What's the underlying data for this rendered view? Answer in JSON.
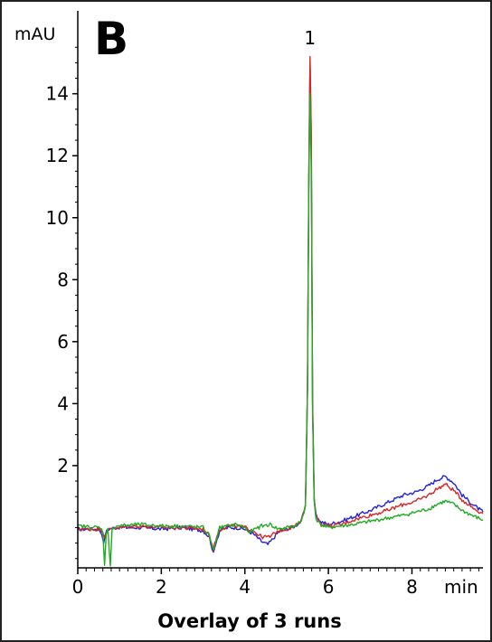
{
  "panel_label": "B",
  "caption": "Overlay of 3 runs",
  "chart_data": {
    "type": "line",
    "title": "",
    "xlabel": "min",
    "ylabel": "mAU",
    "xlim": [
      0,
      9.7
    ],
    "ylim": [
      -1.3,
      16.5
    ],
    "x_ticks": [
      0,
      2,
      4,
      6,
      8
    ],
    "x_tick_labels": [
      "0",
      "2",
      "4",
      "6",
      "8"
    ],
    "y_ticks": [
      2,
      4,
      6,
      8,
      10,
      12,
      14
    ],
    "y_tick_labels": [
      "2",
      "4",
      "6",
      "8",
      "10",
      "12",
      "14"
    ],
    "grid": false,
    "legend": "none",
    "annotations": [
      {
        "text": "1",
        "x": 5.56,
        "y": 15.6
      }
    ],
    "series": [
      {
        "color": "#2222dd",
        "x": [
          0,
          0.5,
          0.58,
          0.62,
          0.66,
          0.72,
          0.9,
          1.5,
          2.0,
          2.5,
          3.0,
          3.15,
          3.25,
          3.3,
          3.4,
          3.6,
          3.8,
          4.0,
          4.2,
          4.4,
          4.55,
          4.65,
          4.8,
          5.0,
          5.2,
          5.35,
          5.45,
          5.5,
          5.53,
          5.56,
          5.59,
          5.62,
          5.66,
          5.7,
          5.8,
          6.0,
          6.3,
          6.6,
          7.0,
          7.4,
          7.8,
          8.1,
          8.4,
          8.6,
          8.8,
          9.0,
          9.2,
          9.5,
          9.7
        ],
        "y": [
          -0.05,
          -0.05,
          -0.2,
          -0.55,
          -0.2,
          -0.05,
          0.0,
          0.0,
          -0.05,
          0.0,
          -0.1,
          -0.3,
          -0.85,
          -0.5,
          -0.1,
          0.0,
          0.0,
          -0.05,
          -0.2,
          -0.45,
          -0.55,
          -0.4,
          -0.15,
          -0.05,
          0.05,
          0.2,
          0.7,
          4.5,
          11.0,
          15.0,
          12.5,
          4.0,
          0.9,
          0.4,
          0.2,
          0.1,
          0.2,
          0.35,
          0.55,
          0.8,
          1.05,
          1.15,
          1.35,
          1.55,
          1.65,
          1.45,
          1.05,
          0.7,
          0.5
        ]
      },
      {
        "color": "#dd2222",
        "x": [
          0,
          0.5,
          0.6,
          0.64,
          0.7,
          0.9,
          1.5,
          2.0,
          2.5,
          3.0,
          3.15,
          3.25,
          3.3,
          3.4,
          3.6,
          3.8,
          4.0,
          4.2,
          4.4,
          4.6,
          4.8,
          5.0,
          5.2,
          5.35,
          5.45,
          5.5,
          5.53,
          5.56,
          5.59,
          5.62,
          5.66,
          5.7,
          5.8,
          6.0,
          6.3,
          6.6,
          7.0,
          7.4,
          7.8,
          8.1,
          8.4,
          8.6,
          8.8,
          9.0,
          9.2,
          9.5,
          9.7
        ],
        "y": [
          -0.05,
          -0.05,
          -0.1,
          -0.3,
          -0.1,
          0.0,
          0.05,
          0.0,
          0.0,
          -0.05,
          -0.25,
          -0.7,
          -0.4,
          -0.05,
          0.05,
          0.05,
          0.0,
          -0.1,
          -0.3,
          -0.3,
          -0.1,
          -0.05,
          0.05,
          0.2,
          0.75,
          4.6,
          11.2,
          15.2,
          12.7,
          4.1,
          0.95,
          0.4,
          0.15,
          0.05,
          0.1,
          0.25,
          0.4,
          0.55,
          0.75,
          0.85,
          1.05,
          1.25,
          1.4,
          1.2,
          0.9,
          0.6,
          0.45
        ]
      },
      {
        "color": "#22aa22",
        "x": [
          0,
          0.5,
          0.6,
          0.64,
          0.68,
          0.72,
          0.78,
          0.82,
          0.9,
          1.5,
          2.0,
          2.5,
          3.0,
          3.15,
          3.25,
          3.3,
          3.4,
          3.6,
          3.8,
          4.0,
          4.1,
          4.25,
          4.4,
          4.6,
          4.8,
          5.0,
          5.2,
          5.35,
          5.45,
          5.5,
          5.53,
          5.56,
          5.59,
          5.62,
          5.66,
          5.7,
          5.8,
          6.0,
          6.3,
          6.6,
          7.0,
          7.4,
          7.8,
          8.1,
          8.4,
          8.6,
          8.8,
          9.0,
          9.2,
          9.5,
          9.7
        ],
        "y": [
          0.05,
          0.0,
          -0.1,
          -1.25,
          -0.2,
          0.0,
          -1.25,
          -0.1,
          0.05,
          0.1,
          0.05,
          0.05,
          0.0,
          -0.25,
          -0.75,
          -0.45,
          0.0,
          0.05,
          0.1,
          0.0,
          -0.15,
          -0.05,
          0.05,
          0.1,
          -0.05,
          0.0,
          0.05,
          0.2,
          0.7,
          4.4,
          10.9,
          14.0,
          11.5,
          3.8,
          0.85,
          0.3,
          0.1,
          0.0,
          0.05,
          0.1,
          0.2,
          0.3,
          0.4,
          0.5,
          0.6,
          0.75,
          0.85,
          0.75,
          0.55,
          0.35,
          0.25
        ]
      }
    ]
  }
}
